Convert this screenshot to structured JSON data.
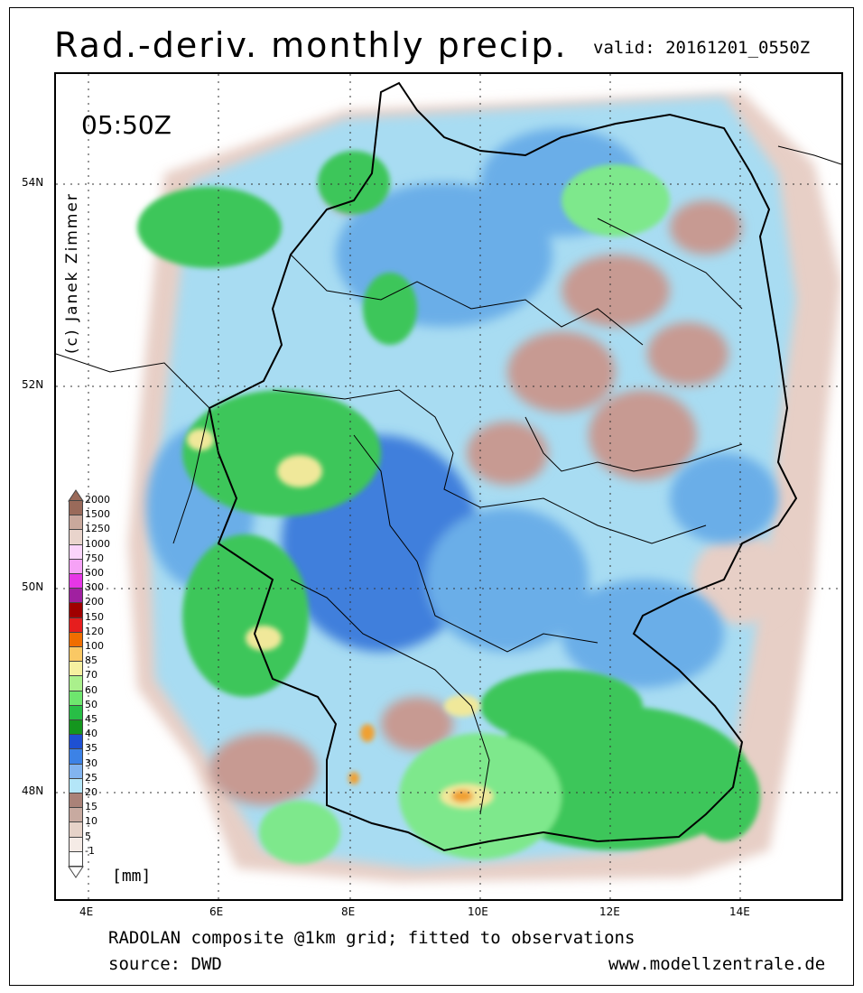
{
  "header": {
    "title": "Rad.-deriv. monthly precip.",
    "valid": "valid: 20161201_0550Z"
  },
  "map": {
    "time_label": "05:50Z",
    "copyright": "(c) Janek Zimmer",
    "lat_labels": [
      "54N",
      "52N",
      "50N",
      "48N"
    ],
    "lon_labels": [
      "4E",
      "6E",
      "8E",
      "10E",
      "12E",
      "14E"
    ],
    "grid_style": "dotted",
    "colors": {
      "border": "#000000",
      "light_blue": "#a8dcf2",
      "mid_blue": "#6aaee8",
      "blue": "#3f7fdc",
      "green_light": "#7ee88c",
      "green": "#3cc65a",
      "brown": "#c79a92",
      "pale_brown": "#e7cfc6",
      "yellow": "#f0e89a",
      "orange": "#f0a030"
    }
  },
  "legend": {
    "unit": "[mm]",
    "entries": [
      {
        "label": "2000",
        "color": "#9a6a5a"
      },
      {
        "label": "1500",
        "color": "#c9a89c"
      },
      {
        "label": "1250",
        "color": "#e9d4cc"
      },
      {
        "label": "1000",
        "color": "#fad4fa"
      },
      {
        "label": "750",
        "color": "#f6a2f6"
      },
      {
        "label": "500",
        "color": "#e636e6"
      },
      {
        "label": "300",
        "color": "#a020a0"
      },
      {
        "label": "200",
        "color": "#a00000"
      },
      {
        "label": "150",
        "color": "#e61e1e"
      },
      {
        "label": "120",
        "color": "#f06e00"
      },
      {
        "label": "100",
        "color": "#fac864"
      },
      {
        "label": "85",
        "color": "#f6f0a0"
      },
      {
        "label": "70",
        "color": "#aaf08c"
      },
      {
        "label": "60",
        "color": "#6ee66e"
      },
      {
        "label": "50",
        "color": "#28be46"
      },
      {
        "label": "45",
        "color": "#14961e"
      },
      {
        "label": "40",
        "color": "#1e50d2"
      },
      {
        "label": "35",
        "color": "#3c82e6"
      },
      {
        "label": "30",
        "color": "#82b4f0"
      },
      {
        "label": "25",
        "color": "#b4e6f8"
      },
      {
        "label": "20",
        "color": "#aa8278"
      },
      {
        "label": "15",
        "color": "#c8aaa0"
      },
      {
        "label": "10",
        "color": "#e6d2c8"
      },
      {
        "label": "5",
        "color": "#f5ebe6"
      },
      {
        "label": "-1",
        "color": "#ffffff"
      }
    ]
  },
  "footer": {
    "line1": "RADOLAN composite @1km grid; fitted to observations",
    "line2": "source: DWD",
    "url": "www.modellzentrale.de"
  }
}
